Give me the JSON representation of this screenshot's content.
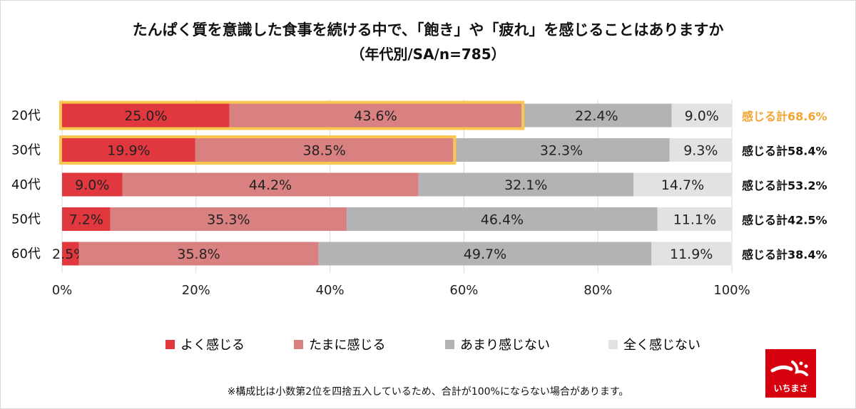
{
  "title": "たんぱく質を意識した食事を続ける中で、「飽き」や「疲れ」を感じることはありますか",
  "subtitle": "（年代別/SA/n=785）",
  "note": "※構成比は小数第2位を四捨五入しているため、合計が100%にならない場合があります。",
  "colors": {
    "often": "#e0383e",
    "sometimes": "#d98080",
    "rarely": "#b3b3b5",
    "never": "#e3e1e4",
    "highlight": "#f9c74f",
    "total_highlight": "#f3a431",
    "logo": "#d7000f"
  },
  "chart_data": {
    "type": "bar",
    "orientation": "horizontal",
    "stacked": true,
    "categories": [
      "20代",
      "30代",
      "40代",
      "50代",
      "60代"
    ],
    "series": [
      {
        "name": "よく感じる",
        "values": [
          25.0,
          19.9,
          9.0,
          7.2,
          2.5
        ],
        "labels": [
          "25.0%",
          "19.9%",
          "9.0%",
          "7.2%",
          "2.5%"
        ]
      },
      {
        "name": "たまに感じる",
        "values": [
          43.6,
          38.5,
          44.2,
          35.3,
          35.8
        ],
        "labels": [
          "43.6%",
          "38.5%",
          "44.2%",
          "35.3%",
          "35.8%"
        ]
      },
      {
        "name": "あまり感じない",
        "values": [
          22.4,
          32.3,
          32.1,
          46.4,
          49.7
        ],
        "labels": [
          "22.4%",
          "32.3%",
          "32.1%",
          "46.4%",
          "49.7%"
        ]
      },
      {
        "name": "全く感じない",
        "values": [
          9.0,
          9.3,
          14.7,
          11.1,
          11.9
        ],
        "labels": [
          "9.0%",
          "9.3%",
          "14.7%",
          "11.1%",
          "11.9%"
        ]
      }
    ],
    "totals": [
      "感じる計68.6%",
      "感じる計58.4%",
      "感じる計53.2%",
      "感じる計42.5%",
      "感じる計38.4%"
    ],
    "highlighted_rows": [
      0,
      1
    ],
    "xlim": [
      0,
      100
    ],
    "xticks": [
      "0%",
      "20%",
      "40%",
      "60%",
      "80%",
      "100%"
    ],
    "grid": "vertical",
    "legend": "bottom"
  },
  "logo_text": "いちまさ"
}
